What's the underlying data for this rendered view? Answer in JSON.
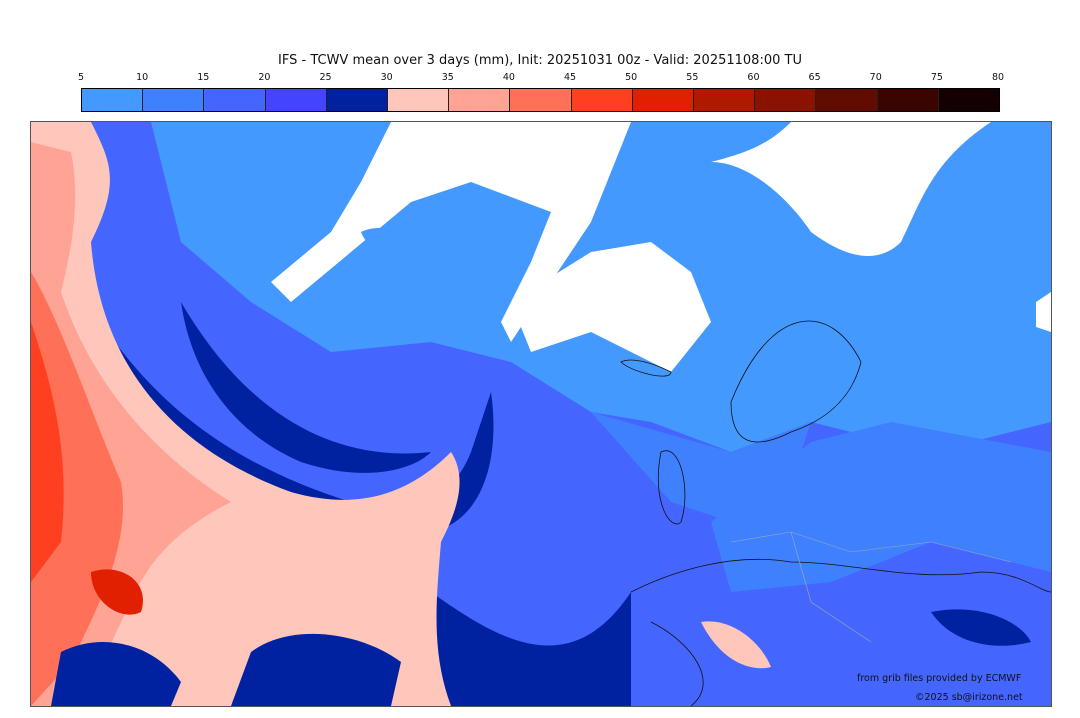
{
  "title": "IFS - TCWV mean over 3 days (mm), Init: 20251031 00z - Valid: 20251108:00 TU",
  "colorbar": {
    "ticks": [
      "5",
      "10",
      "15",
      "20",
      "25",
      "30",
      "35",
      "40",
      "45",
      "50",
      "55",
      "60",
      "65",
      "70",
      "75",
      "80"
    ],
    "colors": [
      "#4499ff",
      "#3f80ff",
      "#4466ff",
      "#4444ff",
      "#0022a0",
      "#ffc6bc",
      "#ffa494",
      "#ff7058",
      "#ff4020",
      "#e02000",
      "#b01800",
      "#8c1200",
      "#600c00",
      "#3a0400",
      "#140000"
    ]
  },
  "credits": {
    "source": "from grib files provided by ECMWF",
    "copyright": "©2025 sb@irizone.net"
  }
}
